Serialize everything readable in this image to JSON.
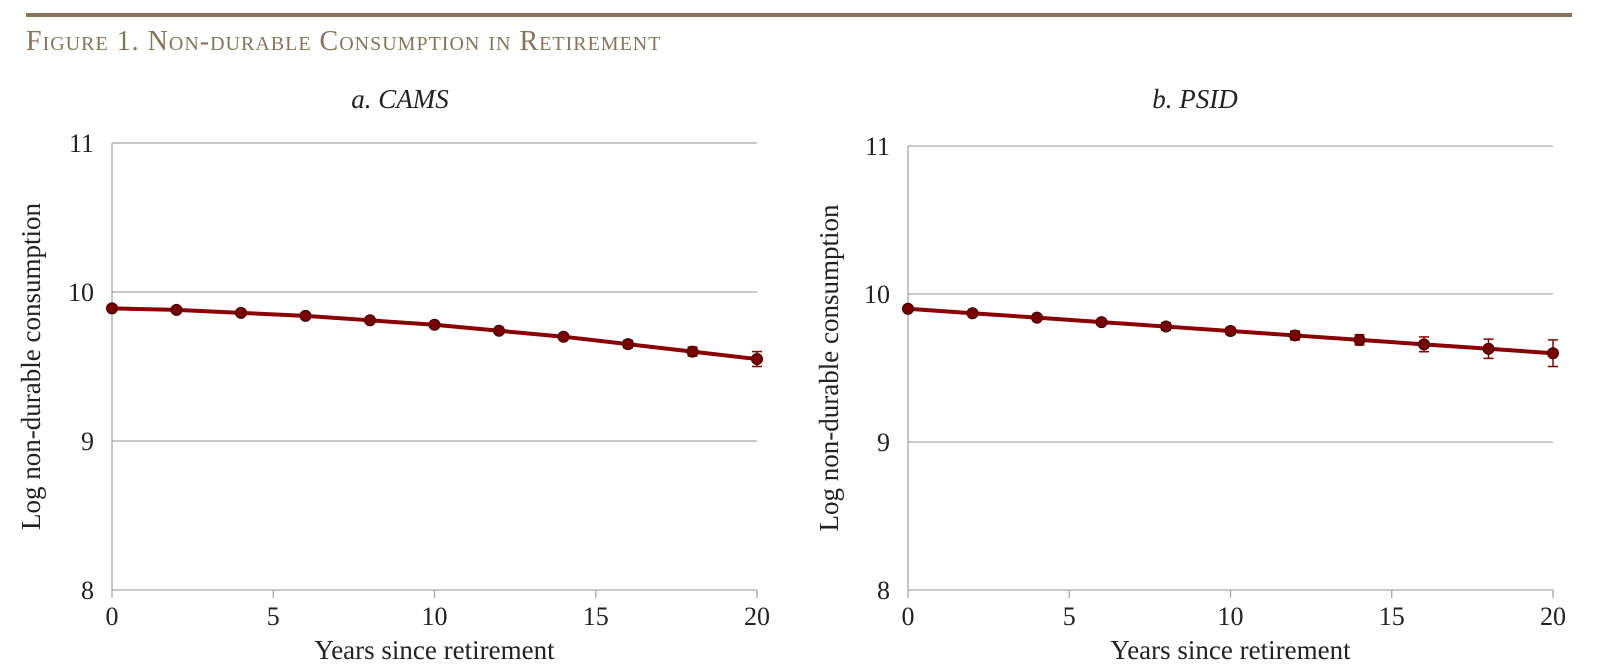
{
  "figure_title": "Figure 1. Non-durable Consumption in Retirement",
  "colors": {
    "title": "#8b7355",
    "rule": "#8b7355",
    "series": "#8b0000",
    "marker": "#7a0000",
    "grid": "#a6a6a6",
    "text": "#222222"
  },
  "chart_data": [
    {
      "type": "line",
      "title": "a. CAMS",
      "xlabel": "Years since retirement",
      "ylabel": "Log non-durable consumption",
      "xlim": [
        0,
        20
      ],
      "ylim": [
        8,
        11
      ],
      "xticks": [
        0,
        5,
        10,
        15,
        20
      ],
      "yticks": [
        8,
        9,
        10,
        11
      ],
      "grid": "horizontal",
      "x": [
        0,
        2,
        4,
        6,
        8,
        10,
        12,
        14,
        16,
        18,
        20
      ],
      "series": [
        {
          "values": [
            9.89,
            9.88,
            9.86,
            9.84,
            9.81,
            9.78,
            9.74,
            9.7,
            9.65,
            9.6,
            9.55
          ],
          "error": [
            0.015,
            0.015,
            0.015,
            0.015,
            0.015,
            0.015,
            0.015,
            0.02,
            0.025,
            0.03,
            0.05
          ]
        }
      ]
    },
    {
      "type": "line",
      "title": "b. PSID",
      "xlabel": "Years since retirement",
      "ylabel": "Log non-durable consumption",
      "xlim": [
        0,
        20
      ],
      "ylim": [
        8,
        11
      ],
      "xticks": [
        0,
        5,
        10,
        15,
        20
      ],
      "yticks": [
        8,
        9,
        10,
        11
      ],
      "grid": "horizontal",
      "x": [
        0,
        2,
        4,
        6,
        8,
        10,
        12,
        14,
        16,
        18,
        20
      ],
      "series": [
        {
          "values": [
            9.9,
            9.87,
            9.84,
            9.81,
            9.78,
            9.75,
            9.72,
            9.69,
            9.66,
            9.63,
            9.6
          ],
          "error": [
            0.015,
            0.015,
            0.015,
            0.02,
            0.025,
            0.025,
            0.03,
            0.035,
            0.05,
            0.065,
            0.09
          ]
        }
      ]
    }
  ]
}
